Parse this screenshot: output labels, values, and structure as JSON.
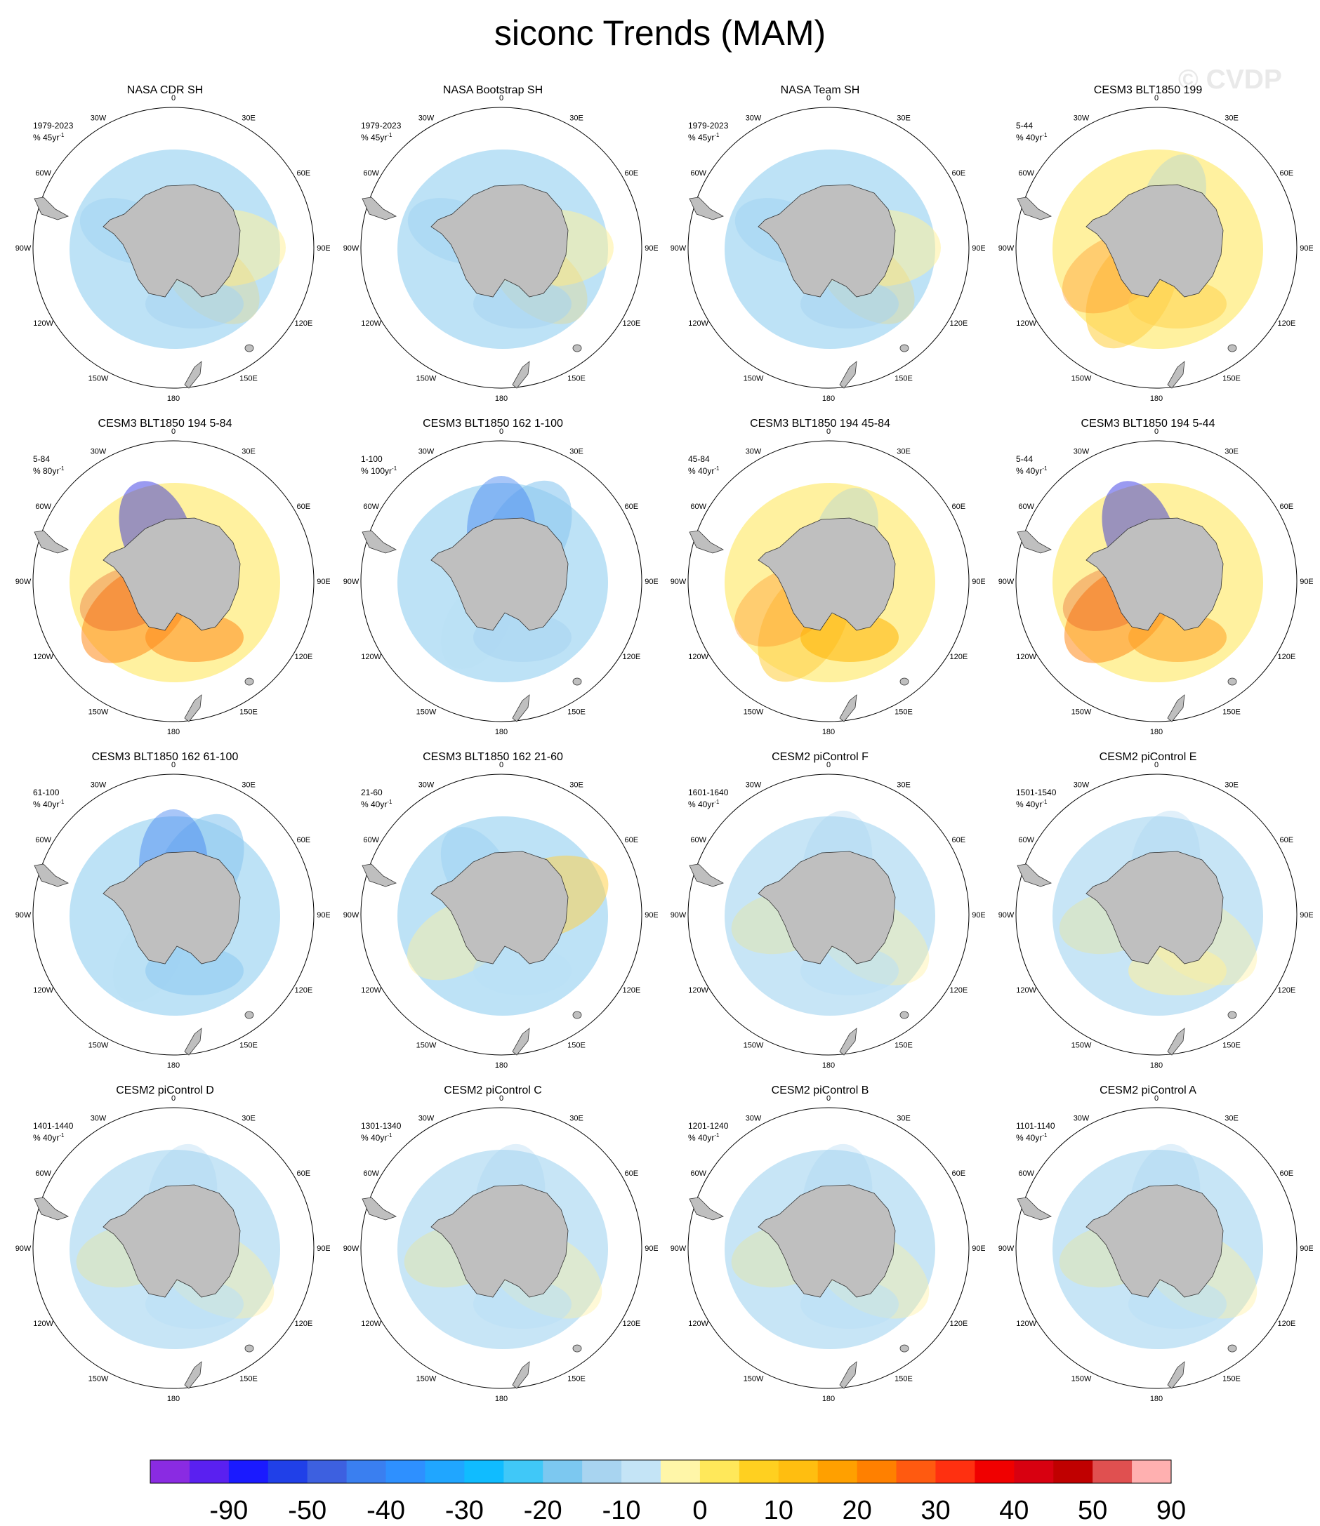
{
  "title": "siconc Trends (MAM)",
  "watermark": "© CVDP",
  "map_labels": {
    "lon": [
      "0",
      "30E",
      "60E",
      "90E",
      "120E",
      "150E",
      "180",
      "150W",
      "120W",
      "90W",
      "60W",
      "30W"
    ]
  },
  "panels": [
    {
      "title": "NASA CDR SH",
      "period": "1979-2023",
      "units": "% 45yr",
      "units_sup": "-1",
      "pattern": "nasa",
      "color": "#a8d4f0"
    },
    {
      "title": "NASA Bootstrap SH",
      "period": "1979-2023",
      "units": "% 45yr",
      "units_sup": "-1",
      "pattern": "nasa",
      "color": "#a8d4f0"
    },
    {
      "title": "NASA Team SH",
      "period": "1979-2023",
      "units": "% 45yr",
      "units_sup": "-1",
      "pattern": "nasa",
      "color": "#a8d4f0"
    },
    {
      "title": "CESM3 BLT1850 199",
      "period": "5-44",
      "units": "% 40yr",
      "units_sup": "-1",
      "pattern": "pos",
      "color": "#ffd24d"
    },
    {
      "title": "CESM3 BLT1850 194 5-84",
      "period": "5-84",
      "units": "% 80yr",
      "units_sup": "-1",
      "pattern": "strong",
      "color": "#ff8a1a"
    },
    {
      "title": "CESM3 BLT1850 162 1-100",
      "period": "1-100",
      "units": "% 100yr",
      "units_sup": "-1",
      "pattern": "neg",
      "color": "#a8d4f0"
    },
    {
      "title": "CESM3 BLT1850 194 45-84",
      "period": "45-84",
      "units": "% 40yr",
      "units_sup": "-1",
      "pattern": "pos",
      "color": "#ffb300"
    },
    {
      "title": "CESM3 BLT1850 194 5-44",
      "period": "5-44",
      "units": "% 40yr",
      "units_sup": "-1",
      "pattern": "strong",
      "color": "#ffa020"
    },
    {
      "title": "CESM3 BLT1850 162 61-100",
      "period": "61-100",
      "units": "% 40yr",
      "units_sup": "-1",
      "pattern": "neg",
      "color": "#8cc8f0"
    },
    {
      "title": "CESM3 BLT1850 162 21-60",
      "period": "21-60",
      "units": "% 40yr",
      "units_sup": "-1",
      "pattern": "mixed",
      "color": "#b9e0f5"
    },
    {
      "title": "CESM2 piControl F",
      "period": "1601-1640",
      "units": "% 40yr",
      "units_sup": "-1",
      "pattern": "weak",
      "color": "#b9e0f5"
    },
    {
      "title": "CESM2 piControl E",
      "period": "1501-1540",
      "units": "% 40yr",
      "units_sup": "-1",
      "pattern": "weak",
      "color": "#fff09a"
    },
    {
      "title": "CESM2 piControl D",
      "period": "1401-1440",
      "units": "% 40yr",
      "units_sup": "-1",
      "pattern": "weak",
      "color": "#b9e0f5"
    },
    {
      "title": "CESM2 piControl C",
      "period": "1301-1340",
      "units": "% 40yr",
      "units_sup": "-1",
      "pattern": "weak",
      "color": "#b9e0f5"
    },
    {
      "title": "CESM2 piControl B",
      "period": "1201-1240",
      "units": "% 40yr",
      "units_sup": "-1",
      "pattern": "weak",
      "color": "#b9e0f5"
    },
    {
      "title": "CESM2 piControl A",
      "period": "1101-1140",
      "units": "% 40yr",
      "units_sup": "-1",
      "pattern": "weak",
      "color": "#b9e0f5"
    }
  ],
  "colorbar": {
    "colors": [
      "#8a2be2",
      "#5a20f0",
      "#1a1aff",
      "#2040e8",
      "#3d60e0",
      "#3a7ff0",
      "#2e90ff",
      "#20a6ff",
      "#10bcff",
      "#40c8f8",
      "#7cc8f0",
      "#a8d4f0",
      "#c4e4f6",
      "#fff6a8",
      "#ffe85a",
      "#ffd020",
      "#ffbe10",
      "#ffa000",
      "#ff8000",
      "#ff5a10",
      "#ff3010",
      "#f00000",
      "#d80010",
      "#c00000",
      "#e05050",
      "#ffb0b0"
    ],
    "labels": [
      "-90",
      "-50",
      "-40",
      "-30",
      "-20",
      "-10",
      "0",
      "10",
      "20",
      "30",
      "40",
      "50",
      "90"
    ]
  }
}
